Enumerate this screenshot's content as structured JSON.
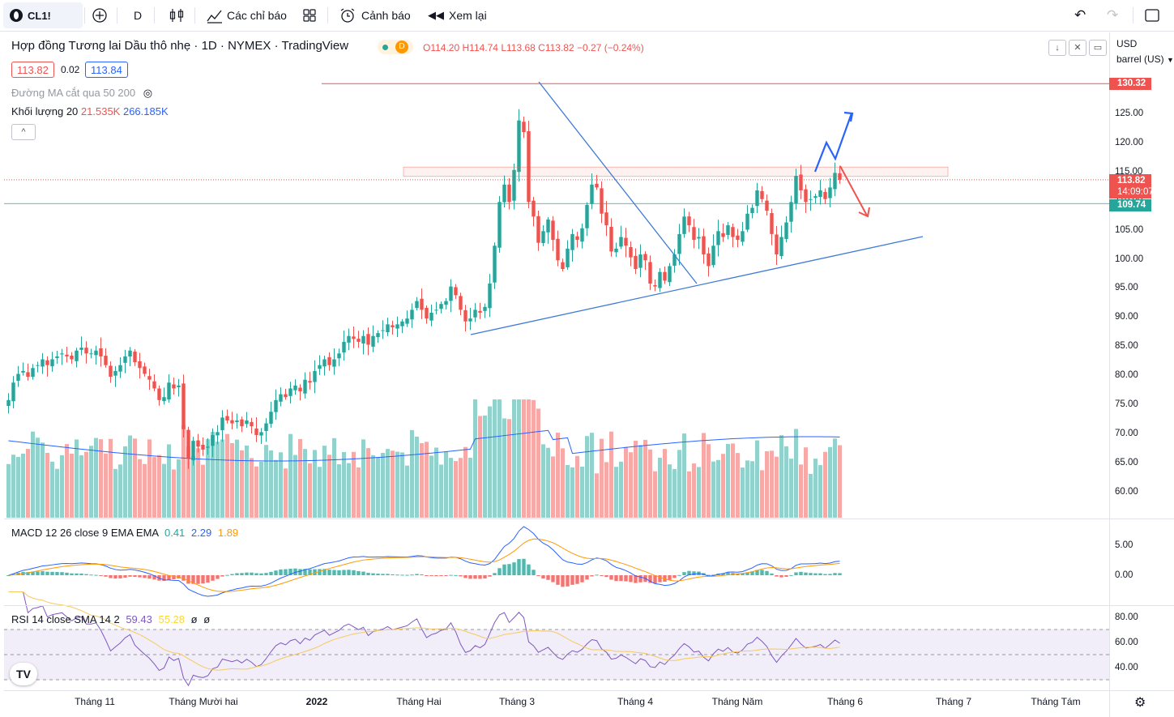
{
  "toolbar": {
    "symbol": "CL1!",
    "interval": "D",
    "indicators_label": "Các chỉ báo",
    "alerts_label": "Cảnh báo",
    "replay_label": "Xem lại"
  },
  "header": {
    "title": "Hợp đồng Tương lai Dầu thô nhẹ · 1D · NYMEX · TradingView",
    "badge": "D",
    "ohlc": {
      "o": "O114.20",
      "h": "H114.74",
      "l": "L113.68",
      "c": "C113.82",
      "chg": "−0.27 (−0.24%)"
    },
    "bid": "113.82",
    "spread": "0.02",
    "ask": "113.84",
    "ma_label": "Đường MA cắt qua 50 200",
    "volume_label": "Khối lượng 20",
    "volume_v1": "21.535K",
    "volume_v2": "266.185K"
  },
  "scale": {
    "currency": "USD",
    "unit": "barrel (US)"
  },
  "colors": {
    "up": "#26a69a",
    "down": "#ef5350",
    "blue": "#2962ff",
    "orange": "#ff9800",
    "purple": "#7e57c2",
    "trend": "#3f7bd6"
  },
  "price_ticks": [
    "125.00",
    "120.00",
    "115.00",
    "110.00",
    "105.00",
    "100.00",
    "95.00",
    "90.00",
    "85.00",
    "80.00",
    "75.00",
    "70.00",
    "65.00",
    "60.00"
  ],
  "tags": {
    "high": "130.32",
    "last": "113.82",
    "countdown": "14:09:07",
    "level": "109.74"
  },
  "macd": {
    "label": "MACD 12 26 close 9 EMA EMA",
    "v1": "0.41",
    "v2": "2.29",
    "v3": "1.89",
    "ticks": [
      "5.00",
      "0.00"
    ]
  },
  "rsi": {
    "label": "RSI 14 close SMA 14 2",
    "v1": "59.43",
    "v2": "55.28",
    "v3": "ø",
    "v4": "ø",
    "ticks": [
      "80.00",
      "60.00",
      "40.00"
    ]
  },
  "x_axis": [
    "Tháng 11",
    "Tháng Mười hai",
    "2022",
    "Tháng Hai",
    "Tháng 3",
    "Tháng 4",
    "Tháng Năm",
    "Tháng 6",
    "Tháng 7",
    "Tháng Tám"
  ],
  "chart_data": {
    "type": "candlestick",
    "title": "Hợp đồng Tương lai Dầu thô nhẹ · 1D · NYMEX · TradingView",
    "ylabel": "USD / barrel (US)",
    "ylim": [
      57,
      132
    ],
    "key_levels": {
      "high": 130.32,
      "last": 113.82,
      "green_level": 109.74,
      "resistance_zone": [
        114.4,
        116.0
      ]
    },
    "closes": [
      76,
      79,
      80.5,
      81,
      80,
      81.5,
      82,
      83,
      82,
      83,
      83.5,
      84,
      83.5,
      83,
      84.5,
      85,
      84,
      84,
      84.5,
      83.5,
      82,
      80,
      81,
      82,
      83.5,
      84.5,
      82.5,
      81.5,
      80.5,
      79.5,
      78,
      76,
      76.5,
      79,
      78,
      78.5,
      71,
      66,
      69,
      68,
      67.5,
      68,
      70,
      70.5,
      73,
      72.5,
      72,
      72.5,
      71.5,
      72.5,
      71.5,
      70,
      70.5,
      72,
      74,
      76,
      77,
      76.5,
      78,
      78.5,
      77.5,
      79.5,
      79,
      81,
      82,
      83,
      82,
      83,
      84,
      86,
      87,
      86.5,
      86,
      87,
      85.5,
      87,
      87.5,
      88,
      89,
      88.5,
      89,
      89.5,
      90,
      91.5,
      93,
      91.5,
      90,
      91,
      91.5,
      92.5,
      93,
      95.5,
      94,
      91.5,
      89.5,
      90,
      91.5,
      91,
      92,
      96,
      102.5,
      110,
      113,
      110,
      115.5,
      124,
      122,
      110,
      107.5,
      103,
      105,
      107,
      103.5,
      100,
      98.5,
      102,
      104.5,
      103.5,
      105.5,
      109.5,
      113,
      112.5,
      108,
      106,
      101.5,
      102,
      104,
      102.5,
      100.5,
      98.5,
      101,
      100,
      96,
      95.5,
      98,
      96.5,
      99,
      101,
      104.5,
      107.5,
      106,
      103.5,
      104,
      101,
      99,
      102.5,
      105,
      104,
      106,
      104,
      103.5,
      105,
      108,
      109,
      112,
      110.5,
      108.5,
      104.5,
      101,
      104,
      106.5,
      110,
      114.5,
      112,
      110,
      110.5,
      111,
      112,
      110.5,
      112.5,
      115,
      113.82
    ]
  }
}
